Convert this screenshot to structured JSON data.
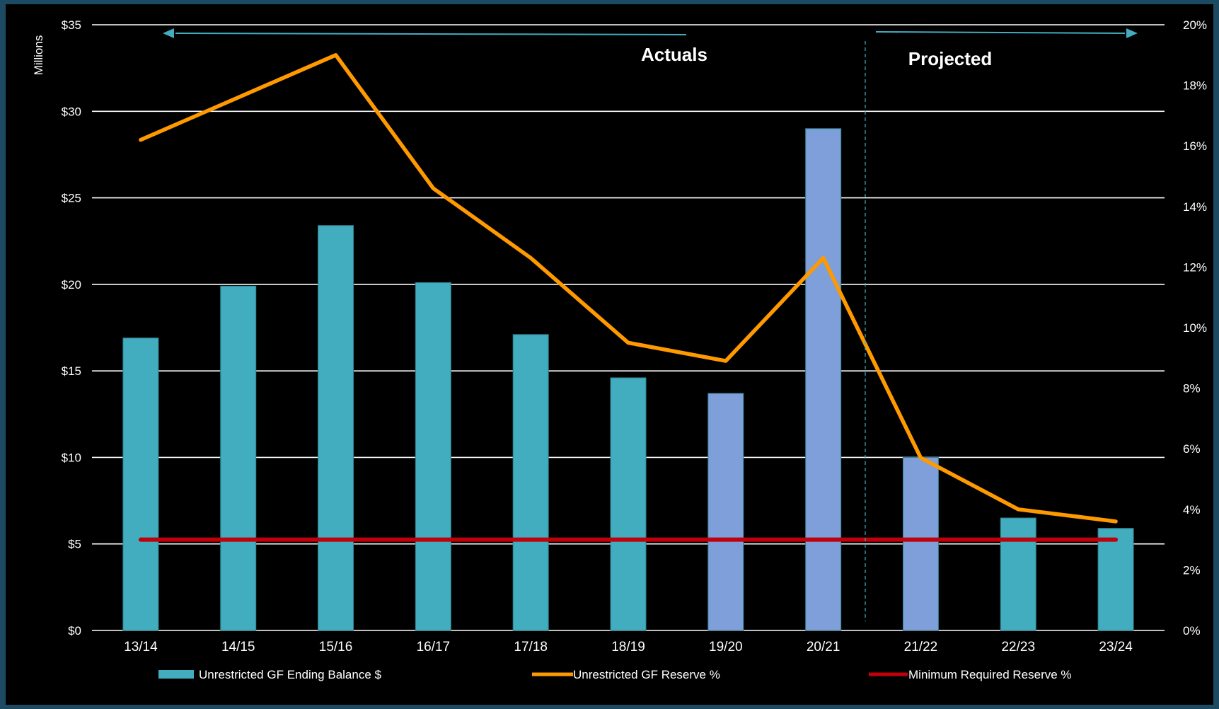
{
  "chart_data": {
    "type": "bar",
    "categories": [
      "13/14",
      "14/15",
      "15/16",
      "16/17",
      "17/18",
      "18/19",
      "19/20",
      "20/21",
      "21/22",
      "22/23",
      "23/24"
    ],
    "series": [
      {
        "name": "Unrestricted GF Ending Balance $",
        "type": "bar",
        "axis": "left",
        "values": [
          16.9,
          19.9,
          23.4,
          20.1,
          17.1,
          14.6,
          13.7,
          29.0,
          10.0,
          6.5,
          5.9
        ],
        "colors": [
          "#41adbf",
          "#41adbf",
          "#41adbf",
          "#41adbf",
          "#41adbf",
          "#41adbf",
          "#7e9fd9",
          "#7e9fd9",
          "#7e9fd9",
          "#41adbf",
          "#41adbf"
        ]
      },
      {
        "name": "Unrestricted GF Reserve %",
        "type": "line",
        "axis": "right",
        "color": "#ff9900",
        "values": [
          16.2,
          17.6,
          19.0,
          14.6,
          12.3,
          9.5,
          8.9,
          12.3,
          5.7,
          4.0,
          3.6
        ]
      },
      {
        "name": "Minimum Required Reserve %",
        "type": "line",
        "axis": "right",
        "color": "#c0000b",
        "values": [
          3.0,
          3.0,
          3.0,
          3.0,
          3.0,
          3.0,
          3.0,
          3.0,
          3.0,
          3.0,
          3.0
        ]
      }
    ],
    "y_left": {
      "label": "Millions",
      "ylim": [
        0,
        35
      ],
      "ticks": [
        0,
        5,
        10,
        15,
        20,
        25,
        30,
        35
      ],
      "tick_labels": [
        "$0",
        "$5",
        "$10",
        "$15",
        "$20",
        "$25",
        "$30",
        "$35"
      ]
    },
    "y_right": {
      "ylim": [
        0,
        20
      ],
      "ticks": [
        0,
        2,
        4,
        6,
        8,
        10,
        12,
        14,
        16,
        18,
        20
      ],
      "tick_labels": [
        "0%",
        "2%",
        "4%",
        "6%",
        "8%",
        "10%",
        "12%",
        "14%",
        "16%",
        "18%",
        "20%"
      ]
    },
    "annotations": {
      "actuals": "Actuals",
      "projected": "Projected"
    },
    "grid": true,
    "legend_position": "bottom",
    "colors": {
      "background": "#000000",
      "border": "#1c4a63",
      "grid": "#ffffff",
      "arrow": "#41adbf"
    }
  }
}
